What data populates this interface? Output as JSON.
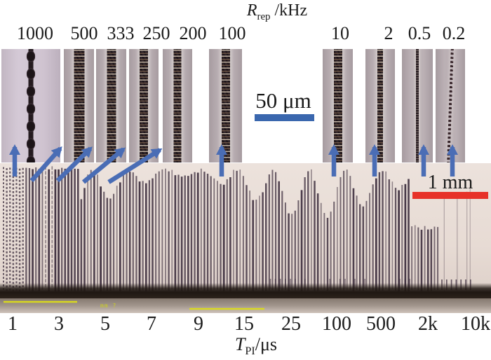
{
  "top_axis": {
    "title": {
      "var": "R",
      "sub": "rep",
      "unit": " /kHz"
    },
    "labels": [
      "1000",
      "500",
      "333",
      "250",
      "200",
      "100",
      "10",
      "2",
      "0.5",
      "0.2"
    ]
  },
  "columns": [
    {
      "label": "1000",
      "line_style": "beaded"
    },
    {
      "label": "500",
      "line_style": "granular"
    },
    {
      "label": "333",
      "line_style": "granular"
    },
    {
      "label": "250",
      "line_style": "granular"
    },
    {
      "label": "200",
      "line_style": "granular"
    },
    {
      "label": "100",
      "line_style": "granular"
    },
    {
      "label": "10",
      "line_style": "granular"
    },
    {
      "label": "2",
      "line_style": "granular"
    },
    {
      "label": "0.5",
      "line_style": "thin"
    },
    {
      "label": "0.2",
      "line_style": "dotted"
    }
  ],
  "scalebars": {
    "top": {
      "label": "50 μm",
      "color": "#3a67ae"
    },
    "photo": {
      "label": "1 mm",
      "color": "#e73128"
    }
  },
  "photo": {
    "note": "mm ?",
    "note_color": "#cdd11c",
    "marker_color": "#d8d820"
  },
  "bottom_axis": {
    "title": {
      "var": "T",
      "sub": "PI",
      "unit": "/μs"
    },
    "labels": [
      "1",
      "3",
      "5",
      "7",
      "9",
      "15",
      "25",
      "100",
      "500",
      "2k",
      "10k"
    ]
  },
  "arrow_color": "#4a6db5"
}
